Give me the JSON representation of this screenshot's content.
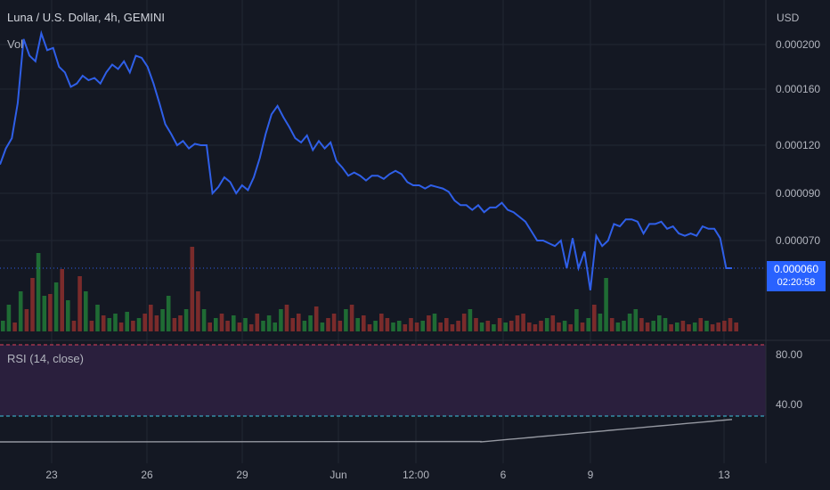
{
  "header": {
    "symbol_title": "Luna / U.S. Dollar, 4h, GEMINI",
    "vol_label": "Vol",
    "rsi_label": "RSI (14, close)",
    "currency_label": "USD"
  },
  "last_price": {
    "price": "0.000060",
    "countdown": "02:20:58"
  },
  "colors": {
    "background": "#141823",
    "grid": "#222733",
    "price_line": "#2f5fe8",
    "vol_up": "#1f6b34",
    "vol_down": "#7a2b2b",
    "rsi_band": "#2a1f3d",
    "rsi_line": "#9598a1",
    "rsi_upper": "#e0405a",
    "rsi_lower": "#3ec6e0",
    "price_badge": "#2962ff"
  },
  "chart_data": {
    "type": "line",
    "price_axis_ticks": [
      "0.000200",
      "0.000160",
      "0.000120",
      "0.000090",
      "0.000070"
    ],
    "price_series": [
      0.000108,
      0.000118,
      0.000125,
      0.00015,
      0.000205,
      0.00019,
      0.000185,
      0.00021,
      0.000195,
      0.000197,
      0.00018,
      0.000175,
      0.000162,
      0.000165,
      0.000172,
      0.000168,
      0.00017,
      0.000165,
      0.000175,
      0.000182,
      0.000178,
      0.000185,
      0.000175,
      0.00019,
      0.000188,
      0.00018,
      0.000165,
      0.00015,
      0.000135,
      0.000128,
      0.00012,
      0.000123,
      0.000118,
      0.000121,
      0.00012,
      0.00012,
      9e-05,
      9.4e-05,
      0.0001,
      9.7e-05,
      9e-05,
      9.5e-05,
      9.2e-05,
      0.0001,
      0.000112,
      0.000128,
      0.000142,
      0.000148,
      0.00014,
      0.000133,
      0.000125,
      0.000122,
      0.000127,
      0.000117,
      0.000123,
      0.000118,
      0.000122,
      0.00011,
      0.000106,
      0.000101,
      0.000103,
      0.000101,
      9.8e-05,
      0.000101,
      0.000101,
      9.9e-05,
      0.000102,
      0.000104,
      0.000102,
      9.7e-05,
      9.5e-05,
      9.5e-05,
      9.3e-05,
      9.5e-05,
      9.4e-05,
      9.3e-05,
      9.1e-05,
      8.7e-05,
      8.5e-05,
      8.5e-05,
      8.3e-05,
      8.5e-05,
      8.2e-05,
      8.4e-05,
      8.4e-05,
      8.6e-05,
      8.3e-05,
      8.2e-05,
      8e-05,
      7.8e-05,
      7.4e-05,
      7e-05,
      7e-05,
      6.9e-05,
      6.8e-05,
      7e-05,
      6e-05,
      7.1e-05,
      6e-05,
      6.6e-05,
      5.2e-05,
      7.2e-05,
      6.8e-05,
      7e-05,
      7.7e-05,
      7.6e-05,
      7.9e-05,
      7.9e-05,
      7.8e-05,
      7.3e-05,
      7.7e-05,
      7.7e-05,
      7.8e-05,
      7.5e-05,
      7.6e-05,
      7.3e-05,
      7.2e-05,
      7.3e-05,
      7.2e-05,
      7.6e-05,
      7.5e-05,
      7.5e-05,
      7.1e-05,
      6e-05,
      6e-05
    ],
    "volume_series": [
      12,
      30,
      10,
      45,
      25,
      60,
      88,
      40,
      42,
      55,
      70,
      35,
      12,
      62,
      45,
      12,
      30,
      18,
      15,
      20,
      10,
      22,
      12,
      15,
      20,
      30,
      18,
      25,
      40,
      15,
      18,
      25,
      95,
      45,
      25,
      10,
      15,
      20,
      12,
      18,
      10,
      15,
      8,
      20,
      12,
      18,
      10,
      25,
      30,
      15,
      20,
      12,
      18,
      28,
      10,
      15,
      20,
      12,
      25,
      30,
      15,
      18,
      8,
      12,
      20,
      15,
      10,
      12,
      8,
      15,
      10,
      12,
      18,
      20,
      10,
      15,
      8,
      12,
      20,
      25,
      15,
      10,
      12,
      8,
      15,
      10,
      12,
      18,
      20,
      10,
      8,
      12,
      15,
      18,
      10,
      12,
      8,
      25,
      10,
      15,
      30,
      20,
      60,
      15,
      10,
      12,
      20,
      25,
      15,
      10,
      12,
      18,
      15,
      8,
      10,
      12,
      8,
      10,
      15,
      12,
      8,
      10,
      12,
      15,
      10
    ],
    "volume_direction": [
      1,
      1,
      0,
      1,
      0,
      0,
      1,
      1,
      0,
      1,
      0,
      1,
      0,
      0,
      1,
      0,
      1,
      0,
      1,
      1,
      0,
      1,
      0,
      1,
      0,
      0,
      0,
      1,
      1,
      0,
      0,
      1,
      0,
      0,
      1,
      0,
      1,
      0,
      0,
      1,
      0,
      1,
      0,
      0,
      1,
      1,
      1,
      1,
      0,
      0,
      0,
      1,
      1,
      0,
      1,
      0,
      0,
      0,
      1,
      0,
      1,
      0,
      0,
      1,
      0,
      0,
      1,
      1,
      0,
      0,
      0,
      1,
      0,
      1,
      0,
      0,
      0,
      0,
      0,
      1,
      0,
      1,
      0,
      1,
      0,
      1,
      0,
      0,
      0,
      0,
      0,
      0,
      1,
      0,
      0,
      1,
      0,
      1,
      0,
      1,
      0,
      1,
      1,
      0,
      1,
      1,
      1,
      1,
      0,
      0,
      1,
      1,
      1,
      0,
      1,
      0,
      0,
      1,
      0,
      1,
      0,
      0,
      0,
      0,
      0
    ],
    "rsi_axis_ticks": [
      "80.00",
      "40.00"
    ],
    "rsi_levels": {
      "upper": 70,
      "lower": 30
    },
    "rsi_series": [
      0,
      0.8,
      1.6,
      2.4,
      3.2,
      4.0,
      4.8,
      5.6,
      6.4,
      7.2,
      8.0,
      8.8,
      9.6,
      10.4,
      11.2,
      12.0,
      12.8,
      13.6,
      14.4,
      15.2,
      16.0,
      16.8,
      17.6,
      18.4,
      19.2,
      20.0,
      20.8,
      21.6,
      22.4,
      23.2,
      24.0,
      24.8,
      25.6,
      26.4,
      27.2,
      28.0
    ],
    "x_ticks": [
      "23",
      "26",
      "29",
      "Jun",
      "12:00",
      "6",
      "9",
      "13"
    ]
  }
}
